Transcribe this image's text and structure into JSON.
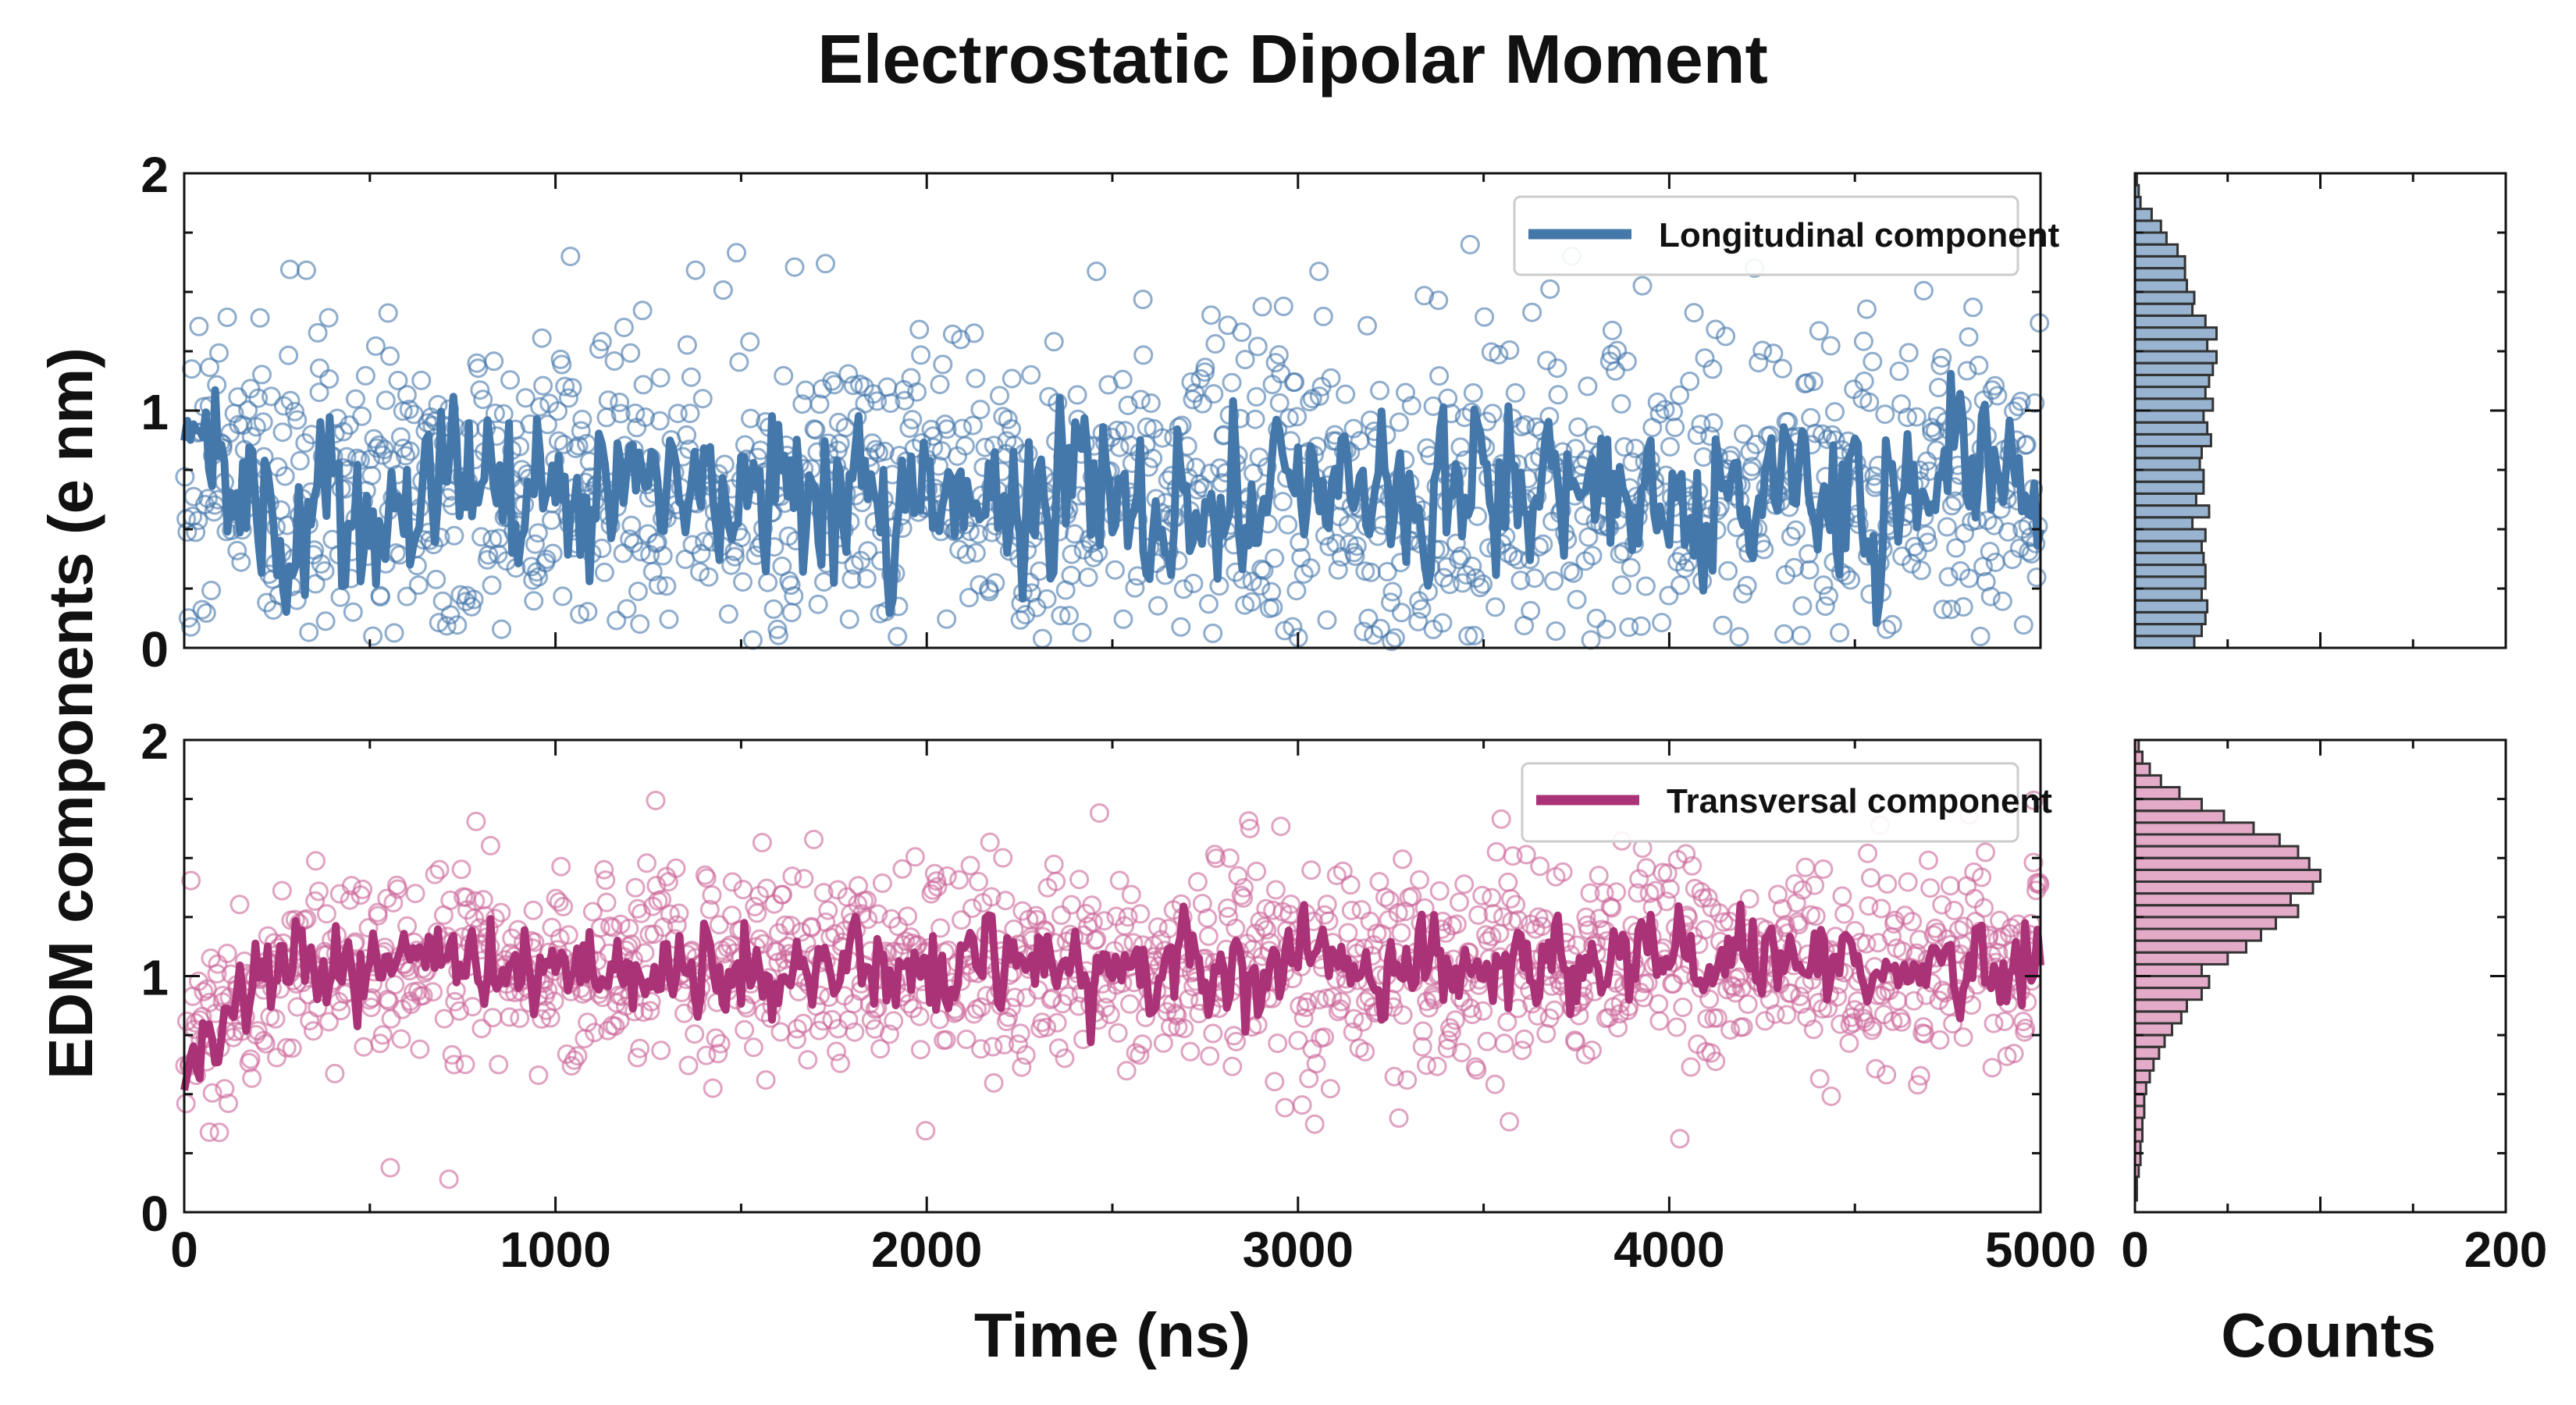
{
  "chart_data": {
    "type": "scatter",
    "title": "Electrostatic Dipolar Moment",
    "xlabel": "Time (ns)",
    "ylabel": "EDM components (e nm)",
    "xlim": [
      0,
      5000
    ],
    "ylim": [
      0,
      2
    ],
    "x_ticks": [
      "0",
      "1000",
      "2000",
      "3000",
      "4000",
      "5000"
    ],
    "y_ticks": [
      "0",
      "1",
      "2"
    ],
    "hist_xlabel": "Counts",
    "hist_xlim": [
      0,
      200
    ],
    "hist_ticks": [
      "0",
      "200"
    ],
    "hist_bin_width": 0.05,
    "series": [
      {
        "name": "Longitudinal component",
        "color": "#4477aa",
        "scatter_face": "#4477aa",
        "mean": 0.65,
        "scatter_spread": 0.37,
        "running_mean_start": 0.85,
        "hist_counts": [
          32,
          36,
          38,
          39,
          36,
          38,
          38,
          37,
          36,
          38,
          31,
          40,
          33,
          37,
          37,
          35,
          36,
          41,
          39,
          37,
          42,
          38,
          40,
          42,
          44,
          39,
          44,
          38,
          31,
          32,
          28,
          27,
          27,
          23,
          17,
          14,
          9,
          3,
          2,
          1
        ]
      },
      {
        "name": "Transversal component",
        "color": "#aa3377",
        "scatter_face": "#cc6699",
        "mean": 1.05,
        "scatter_spread": 0.22,
        "running_mean_start": 0.65,
        "hist_counts": [
          0,
          1,
          1,
          2,
          3,
          3,
          4,
          4,
          5,
          5,
          6,
          8,
          10,
          13,
          16,
          20,
          25,
          28,
          36,
          40,
          36,
          50,
          60,
          68,
          76,
          88,
          84,
          96,
          100,
          94,
          88,
          78,
          64,
          48,
          36,
          24,
          14,
          8,
          4,
          2
        ]
      }
    ]
  }
}
